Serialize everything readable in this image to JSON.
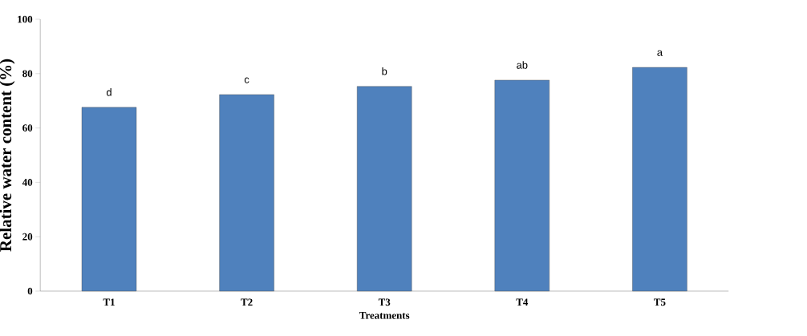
{
  "chart_data": {
    "type": "bar",
    "xlabel": "Treatments",
    "ylabel": "Relative water content (%)",
    "categories": [
      "T1",
      "T2",
      "T3",
      "T4",
      "T5"
    ],
    "values": [
      67.6,
      72.3,
      75.3,
      77.6,
      82.3
    ],
    "color": "#4f81bd",
    "ylim": [
      0,
      100
    ],
    "yticks": [
      0,
      20,
      40,
      60,
      80,
      100
    ],
    "annotations": [
      {
        "text": "d",
        "x": "T1",
        "y": 67.6
      },
      {
        "text": "c",
        "x": "T2",
        "y": 72.3
      },
      {
        "text": "b",
        "x": "T3",
        "y": 75.3
      },
      {
        "text": "ab",
        "x": "T4",
        "y": 77.6
      },
      {
        "text": "a",
        "x": "T5",
        "y": 82.3
      }
    ]
  }
}
